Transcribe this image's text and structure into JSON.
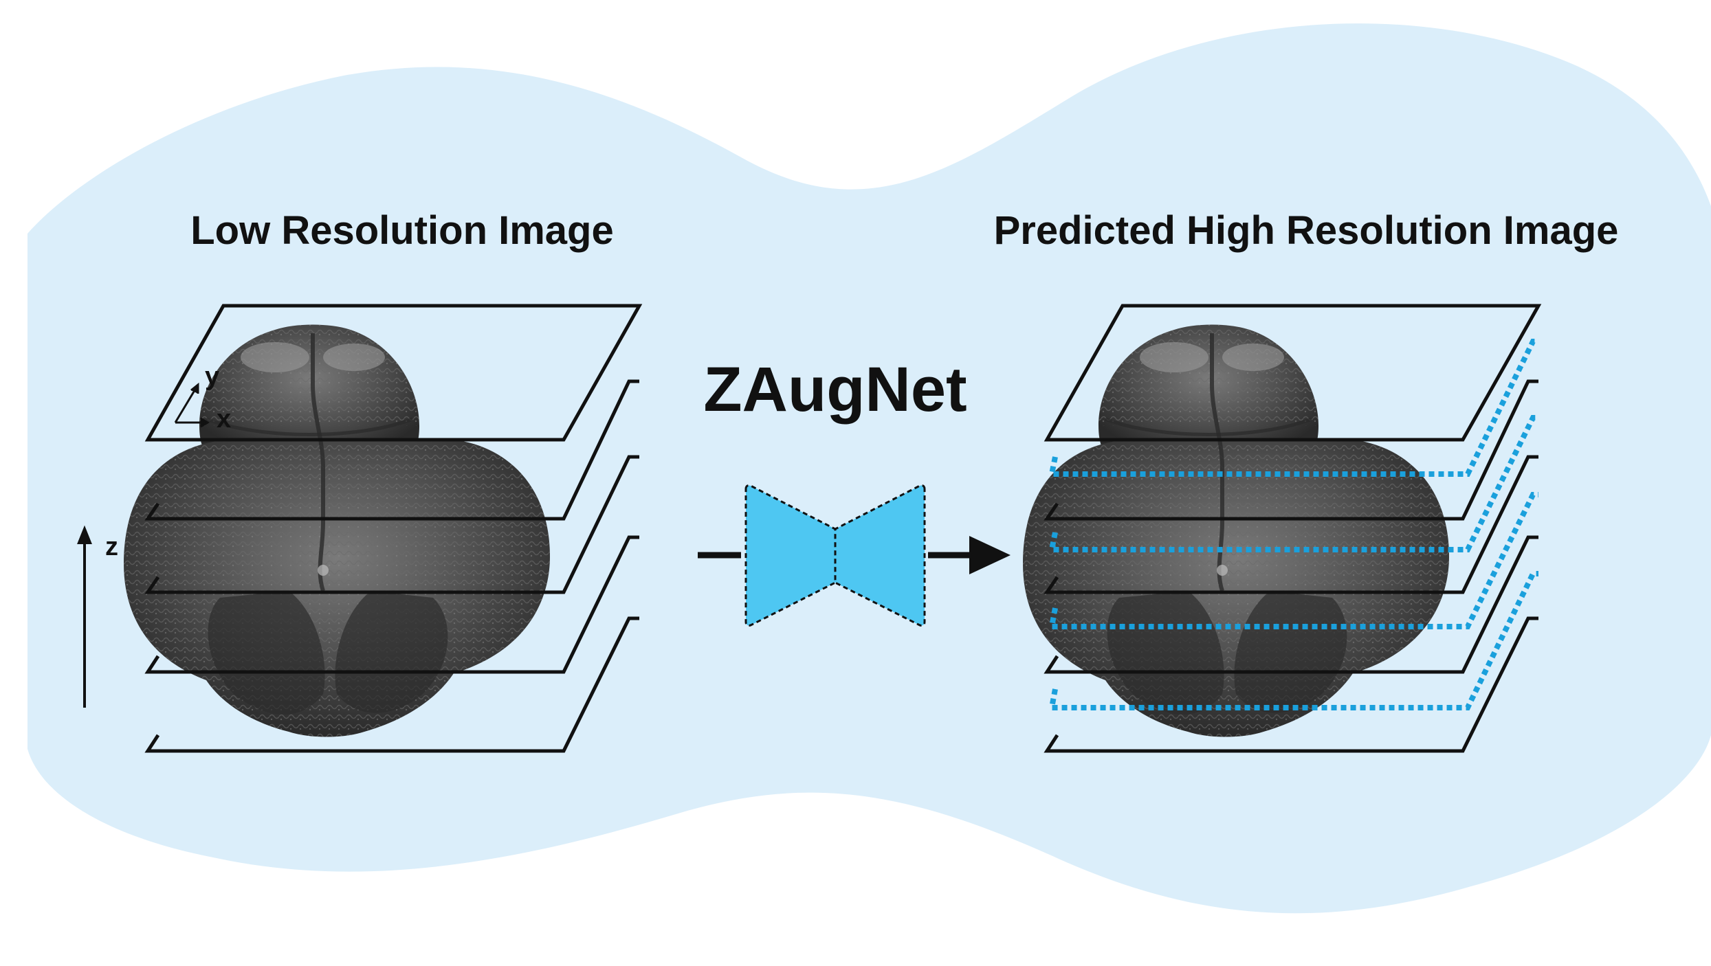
{
  "titles": {
    "left": "Low Resolution Image",
    "center": "ZAugNet",
    "right": "Predicted High Resolution Image"
  },
  "axes": {
    "x": "x",
    "y": "y",
    "z": "z"
  },
  "colors": {
    "background_blob": "#dbeefa",
    "network": "#4ec7f2",
    "predicted_slices": "#1aa0dc",
    "slice_lines": "#111111",
    "specimen": "#4a4a4a"
  },
  "icons": {
    "network": "bowtie-encoder-decoder-icon",
    "arrow": "right-arrow-icon",
    "specimen": "embryo-volume-image"
  }
}
